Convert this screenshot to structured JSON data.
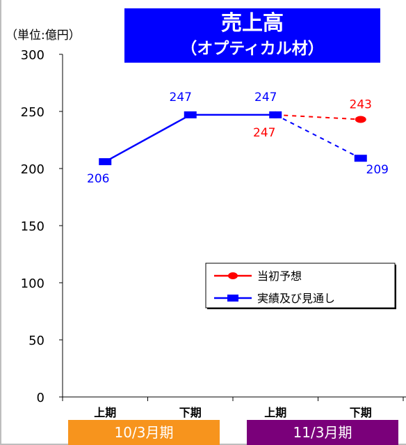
{
  "unit_label": "（単位:億円）",
  "title": {
    "main": "売上高",
    "sub": "（オプティカル材）"
  },
  "periods": [
    "10/3月期",
    "11/3月期"
  ],
  "colors": {
    "title_bg": "#0000ff",
    "period1_bg": "#f7941d",
    "period2_bg": "#7a007a",
    "forecast": "#ff0000",
    "actual": "#0000ff",
    "axis": "#000000"
  },
  "chart_data": {
    "type": "line",
    "ylim": [
      0,
      300
    ],
    "yticks": [
      0,
      50,
      100,
      150,
      200,
      250,
      300
    ],
    "categories": [
      "上期",
      "下期",
      "上期",
      "下期"
    ],
    "legend": {
      "position": "lower-right",
      "entries": [
        "当初予想",
        "実績及び見通し"
      ]
    },
    "series": [
      {
        "name": "当初予想",
        "color": "#ff0000",
        "marker": "circle",
        "values": [
          null,
          null,
          247,
          243
        ],
        "labels": [
          null,
          null,
          "247",
          "243"
        ],
        "dashed_from": 2
      },
      {
        "name": "実績及び見通し",
        "color": "#0000ff",
        "marker": "square",
        "values": [
          206,
          247,
          247,
          209
        ],
        "labels": [
          "206",
          "247",
          "247",
          "209"
        ],
        "dashed_from": 2
      }
    ]
  }
}
